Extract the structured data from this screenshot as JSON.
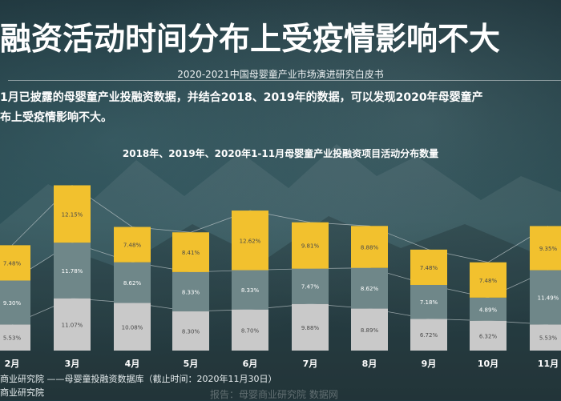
{
  "header": {
    "title": "融资活动时间分布上受疫情影响不大",
    "subtitle": "2020-2021中国母婴童产业市场演进研究白皮书"
  },
  "description": {
    "line1": "1月已披露的母婴童产业投融资数据，并结合2018、2019年的数据，可以发现2020年母婴童产",
    "line2": "布上受疫情影响不大。"
  },
  "source": {
    "line1": "商业研究院 ——母婴童投融资数据库（截止时间：2020年11月30日）",
    "line2": "商业研究院"
  },
  "watermark": "报告：母婴商业研究院  数据网",
  "colors": {
    "y2018": "#c9c9c9",
    "y2019": "#6f8789",
    "y2020": "#f2c12e",
    "label_dark": "#4a4a4a",
    "label_light": "#ffffff",
    "connector": "#b9c3c5"
  },
  "chart_data": {
    "type": "bar",
    "stacked": true,
    "title": "2018年、2019年、2020年1-11月母婴童产业投融资项目活动分布数量",
    "categories": [
      "2月",
      "3月",
      "4月",
      "5月",
      "6月",
      "7月",
      "8月",
      "9月",
      "10月",
      "11月"
    ],
    "series": [
      {
        "name": "2018",
        "values": [
          5.53,
          11.07,
          10.08,
          8.3,
          8.7,
          9.88,
          8.89,
          6.72,
          6.32,
          5.53
        ],
        "labels": [
          "5.53%",
          "11.07%",
          "10.08%",
          "8.30%",
          "8.70%",
          "9.88%",
          "8.89%",
          "6.72%",
          "6.32%",
          "5.53%"
        ]
      },
      {
        "name": "2019",
        "values": [
          9.3,
          11.78,
          8.62,
          8.33,
          8.33,
          7.47,
          8.62,
          7.18,
          4.89,
          11.49
        ],
        "labels": [
          "9.30%",
          "11.78%",
          "8.62%",
          "8.33%",
          "8.33%",
          "7.47%",
          "8.62%",
          "7.18%",
          "4.89%",
          "11.49%"
        ]
      },
      {
        "name": "2020",
        "values": [
          7.48,
          12.15,
          7.48,
          8.41,
          12.62,
          9.81,
          8.88,
          7.48,
          7.48,
          9.35
        ],
        "labels": [
          "7.48%",
          "12.15%",
          "7.48%",
          "8.41%",
          "12.62%",
          "9.81%",
          "8.88%",
          "7.48%",
          "7.48%",
          "9.35%"
        ]
      }
    ],
    "xlabel": "",
    "ylabel": "",
    "grid": false,
    "legend": "none"
  }
}
